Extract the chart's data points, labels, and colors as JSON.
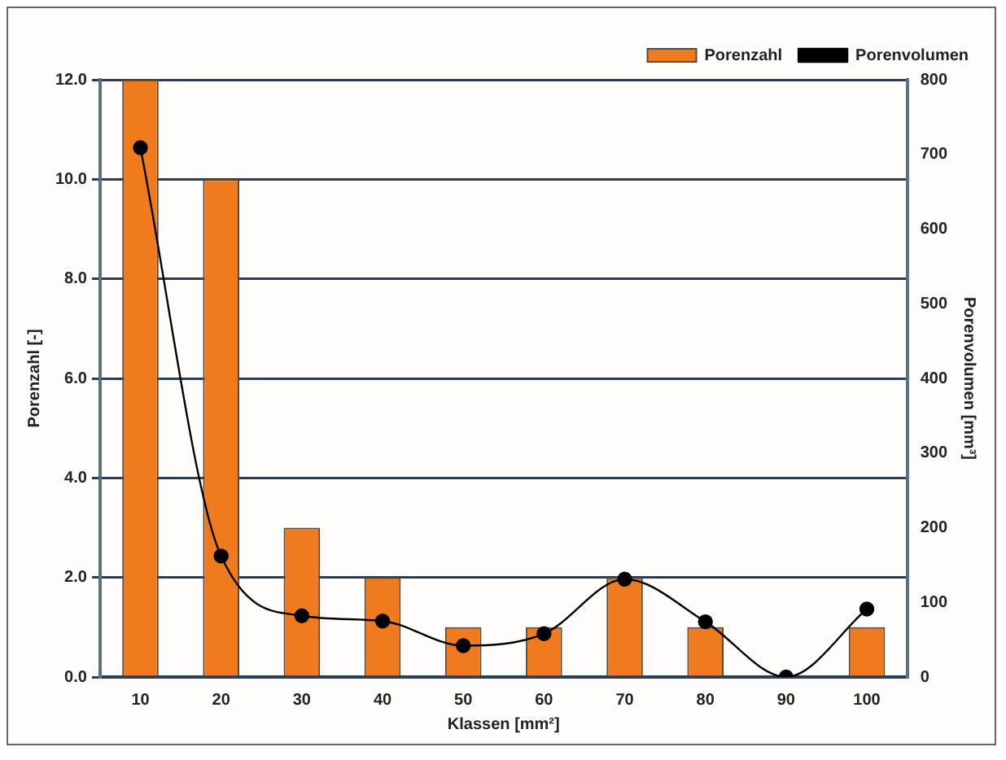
{
  "chart_data": {
    "type": "bar",
    "categories": [
      "10",
      "20",
      "30",
      "40",
      "50",
      "60",
      "70",
      "80",
      "90",
      "100"
    ],
    "xlabel": "Klassen [mm²]",
    "ylabel": "Porenzahl [-]",
    "y2label": "Porenvolumen [mm³]",
    "series": [
      {
        "name": "Porenzahl",
        "color": "#f07a1e",
        "values": [
          12,
          10,
          3,
          2,
          1,
          1,
          2,
          1,
          0,
          1
        ]
      },
      {
        "name": "Porenvolumen",
        "type": "line",
        "axis": "y2",
        "color": "#000000",
        "values": [
          709,
          162,
          82,
          75,
          42,
          58,
          131,
          74,
          0,
          91
        ]
      }
    ],
    "ylim": [
      0,
      12
    ],
    "yticks": [
      {
        "value": 0,
        "label": "0.0"
      },
      {
        "value": 2,
        "label": "2.0"
      },
      {
        "value": 4,
        "label": "4.0"
      },
      {
        "value": 6,
        "label": "6.0"
      },
      {
        "value": 8,
        "label": "8.0"
      },
      {
        "value": 10,
        "label": "10.0"
      },
      {
        "value": 12,
        "label": "12.0"
      }
    ],
    "y2lim": [
      0,
      800
    ],
    "y2ticks": [
      0,
      100,
      200,
      300,
      400,
      500,
      600,
      700,
      800
    ],
    "grid": "y",
    "legend": "top right",
    "marker": "circle"
  }
}
